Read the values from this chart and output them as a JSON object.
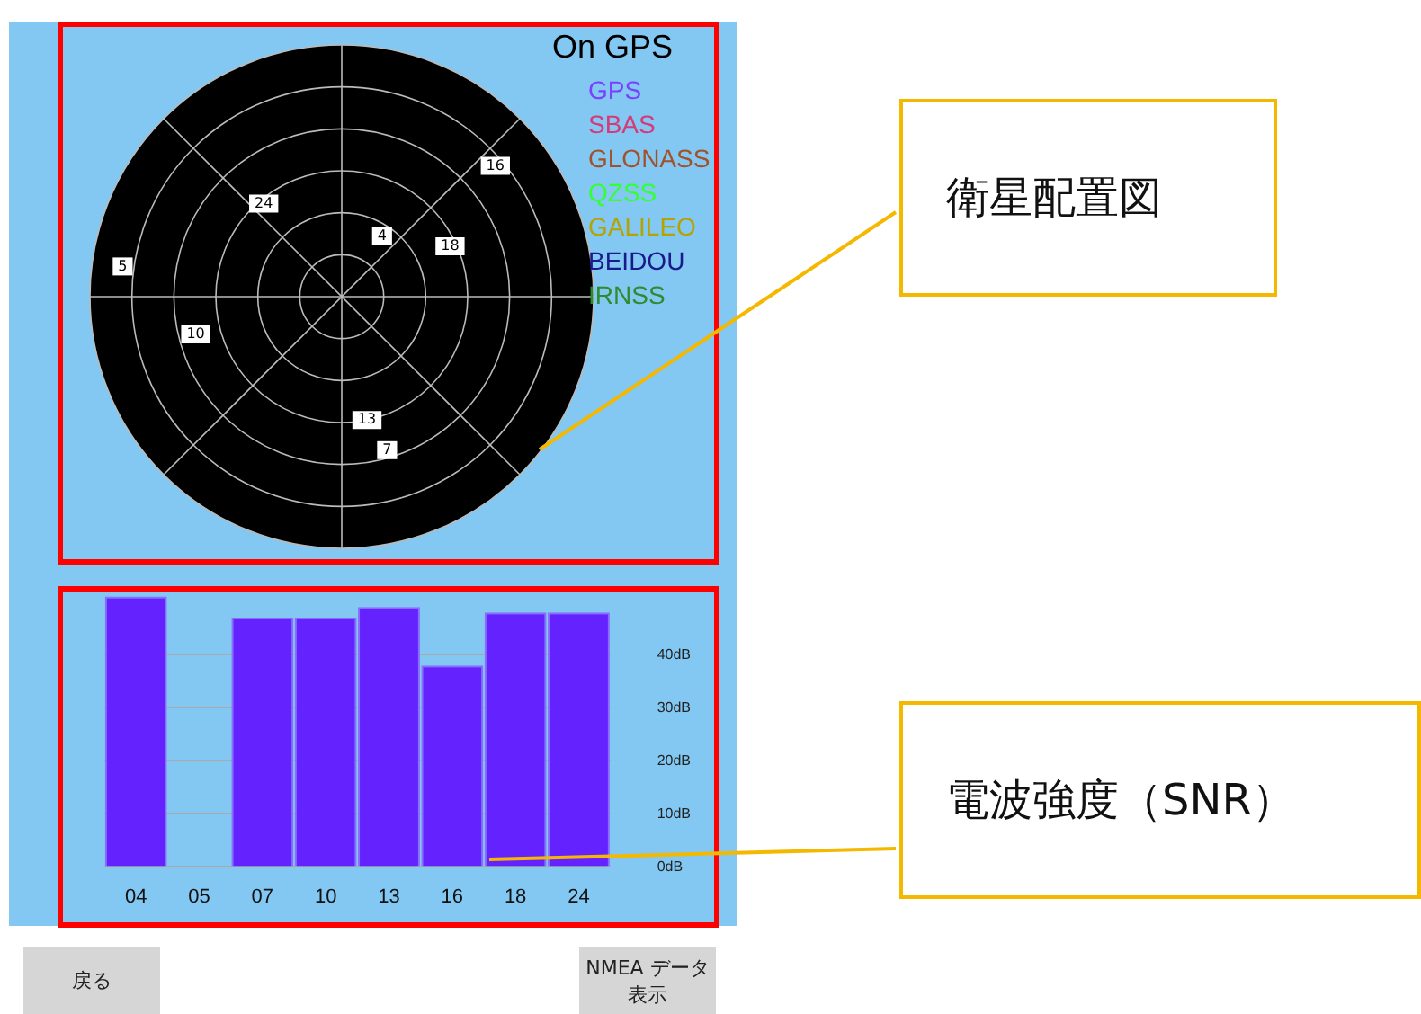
{
  "chart_data": [
    {
      "type": "other",
      "legend_title": "On GPS",
      "series": [
        {
          "name": "GPS",
          "color": "#7b3fff"
        },
        {
          "name": "SBAS",
          "color": "#d63a7a"
        },
        {
          "name": "GLONASS",
          "color": "#a0522d"
        },
        {
          "name": "QZSS",
          "color": "#33ff33"
        },
        {
          "name": "GALILEO",
          "color": "#b5a300"
        },
        {
          "name": "BEIDOU",
          "color": "#1a1a8c"
        },
        {
          "name": "IRNSS",
          "color": "#2e8b2e"
        }
      ],
      "annotations": [
        "衛星配置図",
        "16",
        "24",
        "4",
        "18",
        "5",
        "10",
        "13",
        "7"
      ]
    },
    {
      "type": "bar",
      "categories": [
        "04",
        "05",
        "07",
        "10",
        "13",
        "16",
        "18",
        "24"
      ],
      "values": [
        51,
        null,
        47,
        47,
        49,
        38,
        48,
        48
      ],
      "color": "#6422ff",
      "ylim": [
        0,
        52
      ],
      "yticks": [
        {
          "value": 0,
          "label": "0dB"
        },
        {
          "value": 10,
          "label": "10dB"
        },
        {
          "value": 20,
          "label": "20dB"
        },
        {
          "value": 30,
          "label": "30dB"
        },
        {
          "value": 40,
          "label": "40dB"
        }
      ],
      "grid": "y",
      "annotations": [
        "電波強度（SNR）",
        "戻る",
        "NMEA データ表示"
      ]
    }
  ]
}
